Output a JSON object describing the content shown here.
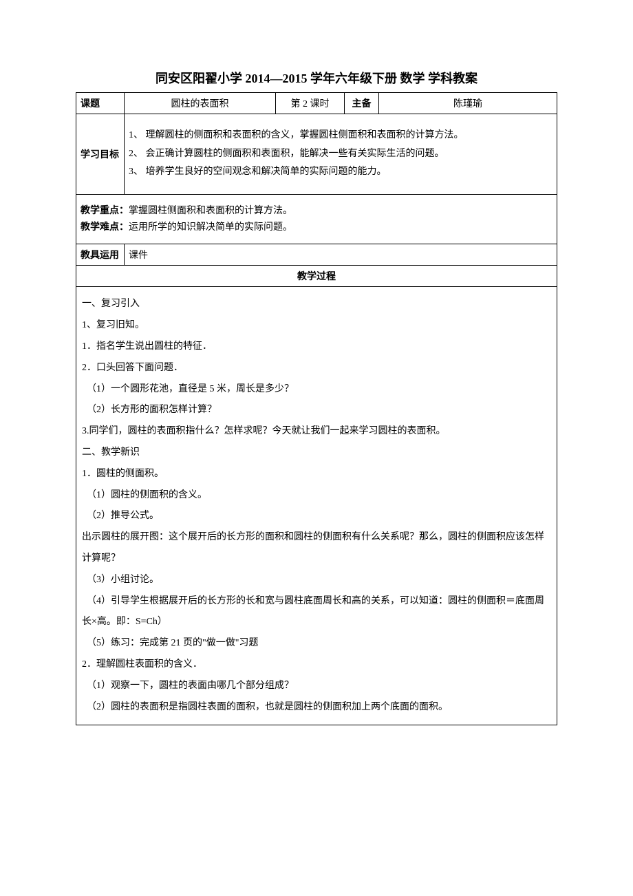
{
  "title": "同安区阳翟小学 2014—2015 学年六年级下册  数学  学科教案",
  "header": {
    "topic_label": "课题",
    "topic": "圆柱的表面积",
    "period": "第  2  课时",
    "preparer_label": "主备",
    "preparer": "陈瑾瑜"
  },
  "objectives": {
    "label": "学习目标",
    "items": [
      "1、 理解圆柱的侧面积和表面积的含义，掌握圆柱侧面积和表面积的计算方法。",
      "2、 会正确计算圆柱的侧面积和表面积，能解决一些有关实际生活的问题。",
      "3、 培养学生良好的空间观念和解决简单的实际问题的能力。"
    ]
  },
  "focus": {
    "key_label": "教学重点：",
    "key": "掌握圆柱侧面积和表面积的计算方法。",
    "diff_label": "教学难点：",
    "diff": "运用所学的知识解决简单的实际问题。"
  },
  "tools": {
    "label": "教具运用",
    "value": "课件"
  },
  "process": {
    "label": "教学过程",
    "lines": [
      "一、复习引入",
      "1、复习旧知。",
      "1．指名学生说出圆柱的特征．",
      "2．口头回答下面问题．",
      "（1）一个圆形花池，直径是 5 米，周长是多少？",
      "（2）长方形的面积怎样计算？",
      "3.同学们，圆柱的表面积指什么？怎样求呢？今天就让我们一起来学习圆柱的表面积。",
      "二、教学新识",
      "1．圆柱的侧面积。",
      "（1）圆柱的侧面积的含义。",
      "（2）推导公式。",
      "出示圆柱的展开图：这个展开后的长方形的面积和圆柱的侧面积有什么关系呢？那么，圆柱的侧面积应该怎样计算呢？",
      "（3）小组讨论。",
      "（4）引导学生根据展开后的长方形的长和宽与圆柱底面周长和高的关系，可以知道：圆柱的侧面积＝底面周长×高。即：S=Ch）",
      "（5）练习：完成第 21 页的\"做一做\"习题",
      "2．理解圆柱表面积的含义．",
      "（1）观察一下，圆柱的表面由哪几个部分组成？",
      "（2）圆柱的表面积是指圆柱表面的面积，也就是圆柱的侧面积加上两个底面的面积。"
    ]
  },
  "styles": {
    "text_color": "#000000",
    "border_color": "#000000",
    "background": "#ffffff"
  }
}
